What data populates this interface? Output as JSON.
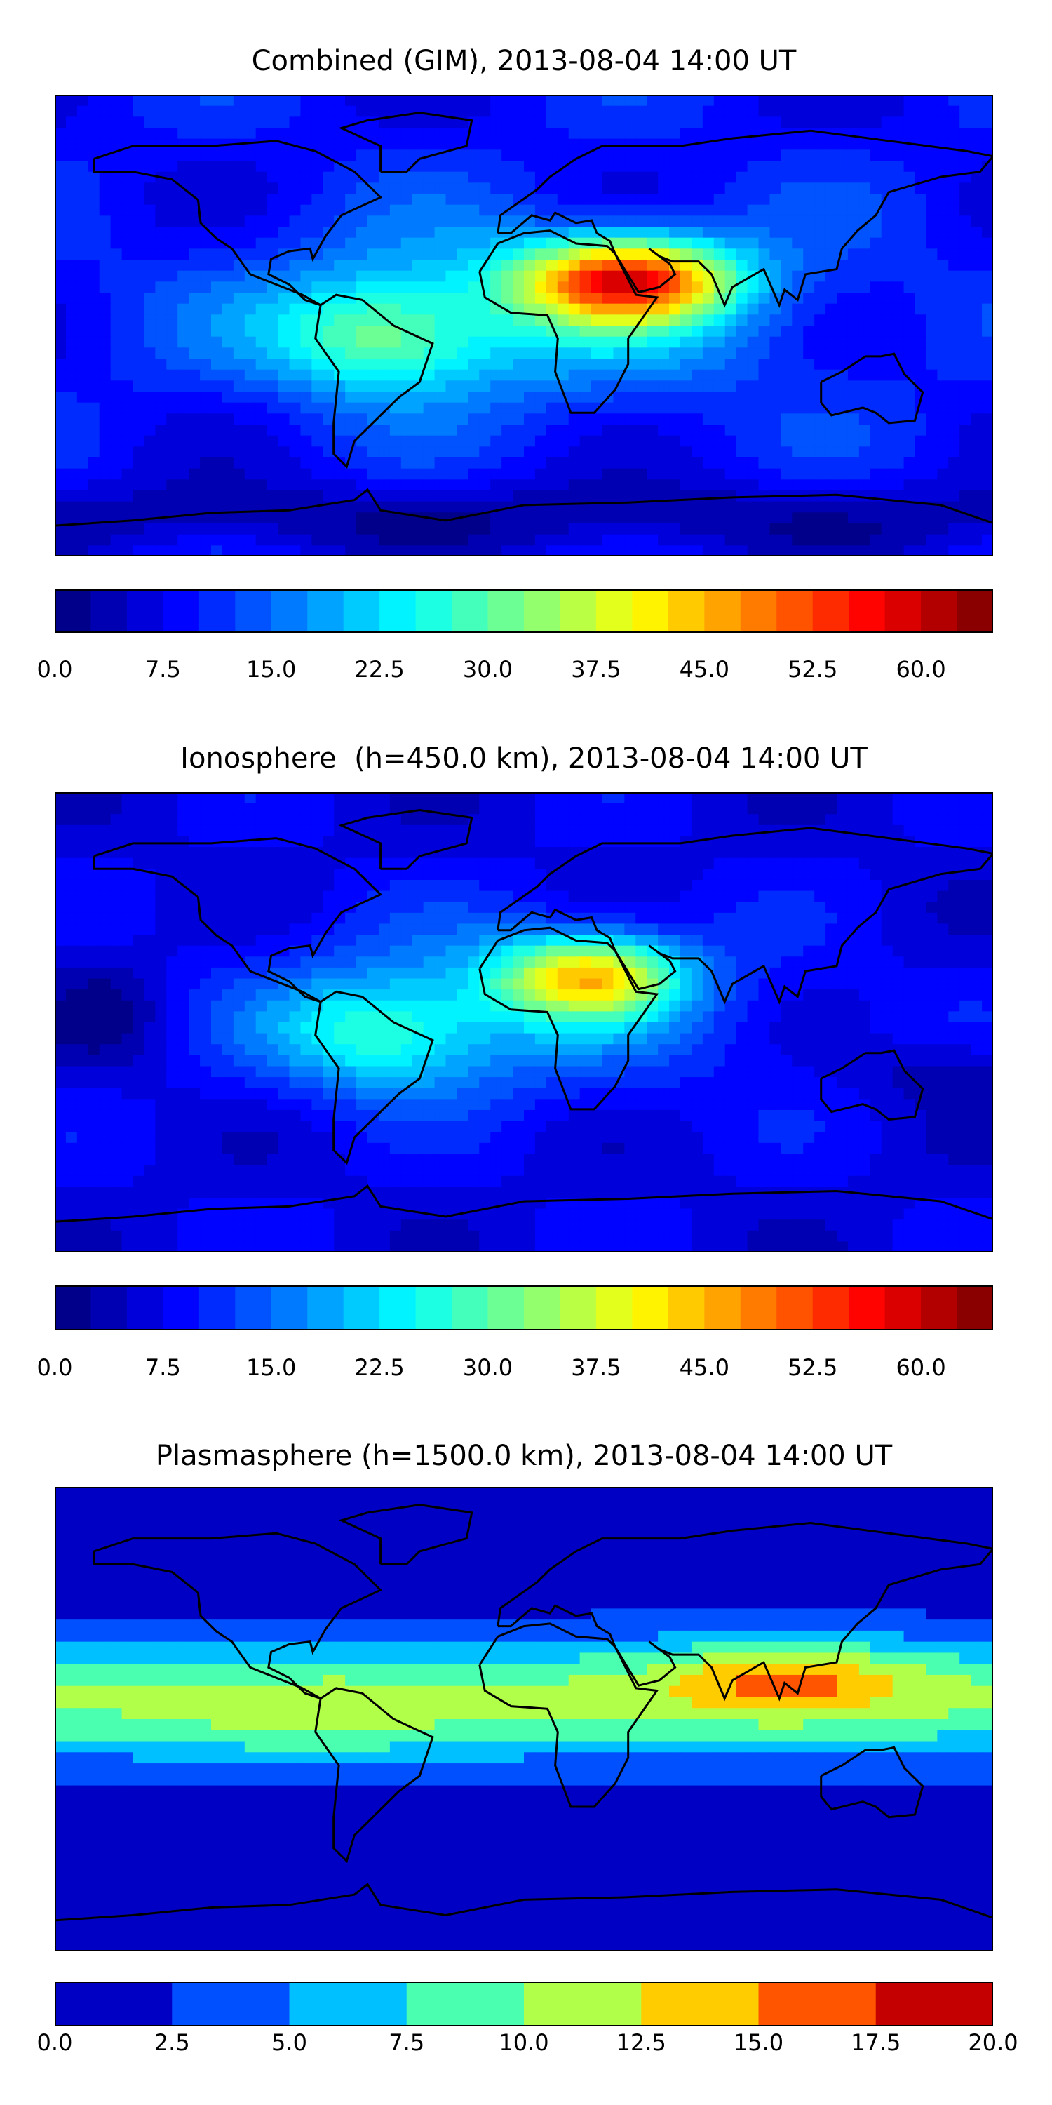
{
  "chart_data": [
    {
      "type": "heatmap",
      "title": "Combined (GIM), 2013-08-04 14:00 UT",
      "levels": {
        "min": 0,
        "max": 65,
        "step": 2.5
      },
      "colormap": "jet",
      "colorbar_ticks": [
        "0.0",
        "7.5",
        "15.0",
        "22.5",
        "30.0",
        "37.5",
        "45.0",
        "52.5",
        "60.0"
      ],
      "colorbar_tick_values": [
        0,
        7.5,
        15,
        22.5,
        30,
        37.5,
        45,
        52.5,
        60
      ]
    },
    {
      "type": "heatmap",
      "title": "Ionosphere  (h=450.0 km), 2013-08-04 14:00 UT",
      "levels": {
        "min": 0,
        "max": 65,
        "step": 2.5
      },
      "colormap": "jet",
      "colorbar_ticks": [
        "0.0",
        "7.5",
        "15.0",
        "22.5",
        "30.0",
        "37.5",
        "45.0",
        "52.5",
        "60.0"
      ],
      "colorbar_tick_values": [
        0,
        7.5,
        15,
        22.5,
        30,
        37.5,
        45,
        52.5,
        60
      ]
    },
    {
      "type": "heatmap",
      "title": "Plasmasphere (h=1500.0 km), 2013-08-04 14:00 UT",
      "levels": {
        "min": 0,
        "max": 20,
        "step": 2.5
      },
      "colors": [
        "#0000c4",
        "#0050ff",
        "#00c0ff",
        "#4affb0",
        "#b2ff4a",
        "#ffcc00",
        "#ff5500",
        "#c40000"
      ],
      "colorbar_ticks": [
        "0.0",
        "2.5",
        "5.0",
        "7.5",
        "10.0",
        "12.5",
        "15.0",
        "17.5",
        "20.0"
      ],
      "colorbar_tick_values": [
        0,
        2.5,
        5,
        7.5,
        10,
        12.5,
        15,
        17.5,
        20
      ]
    }
  ]
}
